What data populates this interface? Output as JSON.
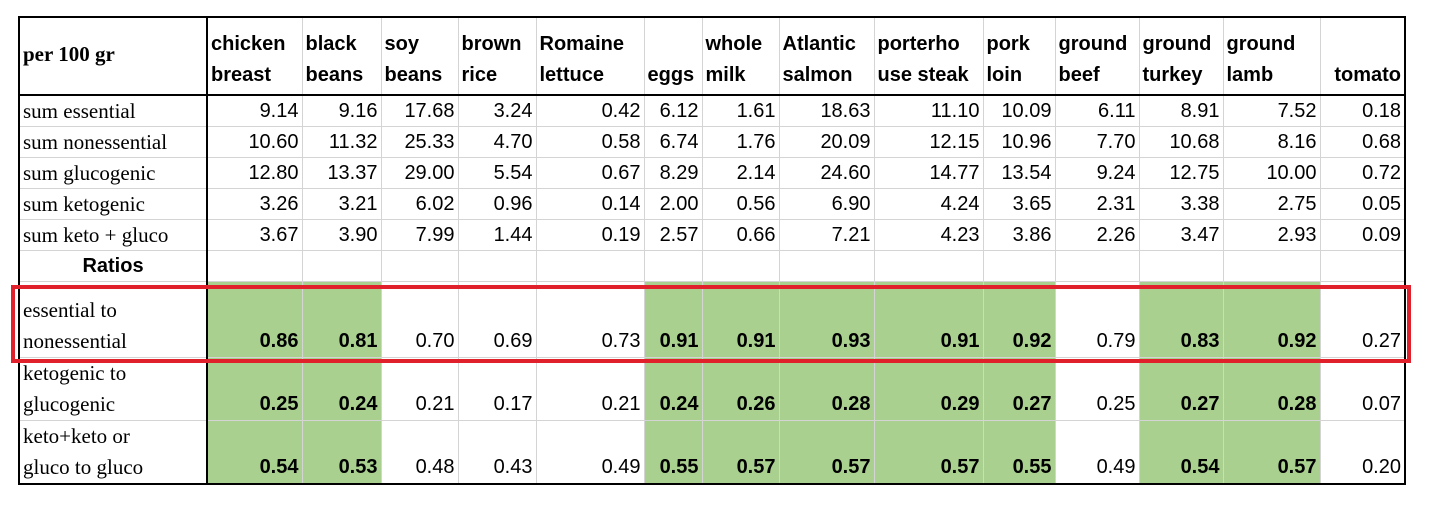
{
  "header": {
    "label": "per 100 gr",
    "foods": [
      "chicken breast",
      "black beans",
      "soy beans",
      "brown rice",
      "Romaine lettuce",
      "eggs",
      "whole milk",
      "Atlantic salmon",
      "porterhouse steak",
      "pork loin",
      "ground beef",
      "ground turkey",
      "ground lamb",
      "tomato"
    ],
    "food_lines": [
      [
        "chicken",
        "breast"
      ],
      [
        "black",
        "beans"
      ],
      [
        "soy",
        "beans"
      ],
      [
        "brown",
        "rice"
      ],
      [
        "Romaine",
        "lettuce"
      ],
      [
        "",
        "eggs"
      ],
      [
        "whole",
        "milk"
      ],
      [
        "Atlantic",
        "salmon"
      ],
      [
        "porterho",
        "use steak"
      ],
      [
        "pork",
        "loin"
      ],
      [
        "ground",
        "beef"
      ],
      [
        "ground",
        "turkey"
      ],
      [
        "ground",
        "lamb"
      ],
      [
        "",
        "tomato"
      ]
    ]
  },
  "sums": [
    {
      "label": "sum essential",
      "values": [
        "9.14",
        "9.16",
        "17.68",
        "3.24",
        "0.42",
        "6.12",
        "1.61",
        "18.63",
        "11.10",
        "10.09",
        "6.11",
        "8.91",
        "7.52",
        "0.18"
      ]
    },
    {
      "label": "sum nonessential",
      "values": [
        "10.60",
        "11.32",
        "25.33",
        "4.70",
        "0.58",
        "6.74",
        "1.76",
        "20.09",
        "12.15",
        "10.96",
        "7.70",
        "10.68",
        "8.16",
        "0.68"
      ]
    },
    {
      "label": "sum glucogenic",
      "values": [
        "12.80",
        "13.37",
        "29.00",
        "5.54",
        "0.67",
        "8.29",
        "2.14",
        "24.60",
        "14.77",
        "13.54",
        "9.24",
        "12.75",
        "10.00",
        "0.72"
      ]
    },
    {
      "label": "sum ketogenic",
      "values": [
        "3.26",
        "3.21",
        "6.02",
        "0.96",
        "0.14",
        "2.00",
        "0.56",
        "6.90",
        "4.24",
        "3.65",
        "2.31",
        "3.38",
        "2.75",
        "0.05"
      ]
    },
    {
      "label": "sum keto + gluco",
      "values": [
        "3.67",
        "3.90",
        "7.99",
        "1.44",
        "0.19",
        "2.57",
        "0.66",
        "7.21",
        "4.23",
        "3.86",
        "2.26",
        "3.47",
        "2.93",
        "0.09"
      ]
    }
  ],
  "section_label": "Ratios",
  "ratios": [
    {
      "label_lines": [
        "essential to",
        "nonessential"
      ],
      "values": [
        "0.86",
        "0.81",
        "0.70",
        "0.69",
        "0.73",
        "0.91",
        "0.91",
        "0.93",
        "0.91",
        "0.92",
        "0.79",
        "0.83",
        "0.92",
        "0.27"
      ]
    },
    {
      "label_lines": [
        "ketogenic to",
        "glucogenic"
      ],
      "values": [
        "0.25",
        "0.24",
        "0.21",
        "0.17",
        "0.21",
        "0.24",
        "0.26",
        "0.28",
        "0.29",
        "0.27",
        "0.25",
        "0.27",
        "0.28",
        "0.07"
      ]
    },
    {
      "label_lines": [
        "keto+keto or",
        "gluco to gluco"
      ],
      "values": [
        "0.54",
        "0.53",
        "0.48",
        "0.43",
        "0.49",
        "0.55",
        "0.57",
        "0.57",
        "0.57",
        "0.55",
        "0.49",
        "0.54",
        "0.57",
        "0.20"
      ]
    }
  ],
  "highlighted_columns": [
    0,
    1,
    5,
    6,
    7,
    8,
    9,
    11,
    12
  ],
  "colors": {
    "highlight_fill": "#a9d08e",
    "callout_border": "#e0202a",
    "grid": "#d4d4d4"
  }
}
